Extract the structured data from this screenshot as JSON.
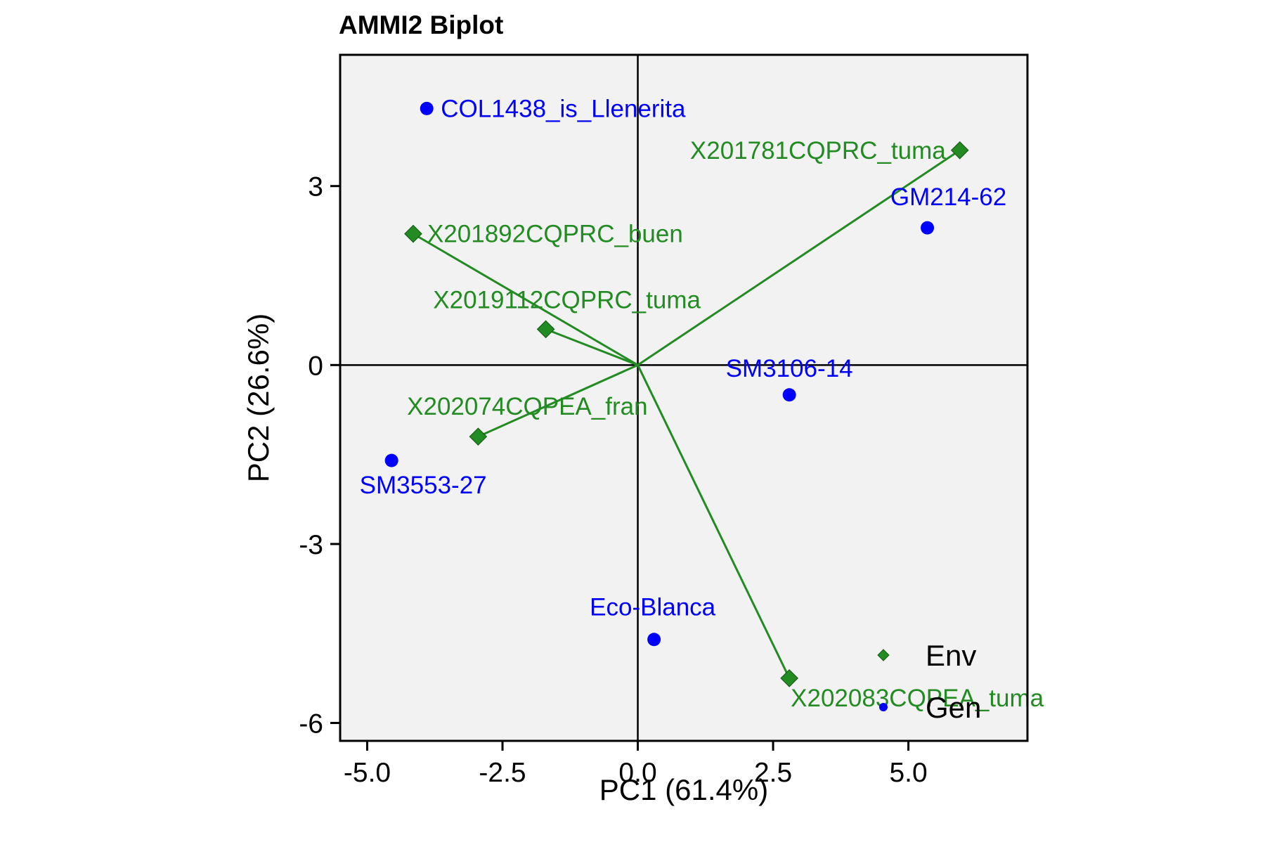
{
  "chart_data": {
    "type": "scatter",
    "title": "AMMI2 Biplot",
    "xlabel": "PC1 (61.4%)",
    "ylabel": "PC2 (26.6%)",
    "xlim": [
      -5.5,
      7.2
    ],
    "ylim": [
      -6.3,
      5.2
    ],
    "x_ticks": [
      -5.0,
      -2.5,
      0.0,
      2.5,
      5.0
    ],
    "x_tick_labels": [
      "-5.0",
      "-2.5",
      "0.0",
      "2.5",
      "5.0"
    ],
    "y_ticks": [
      -6,
      -3,
      0,
      3
    ],
    "y_tick_labels": [
      "-6",
      "-3",
      "0",
      "3"
    ],
    "grid": false,
    "legend_position": "bottom-right",
    "colors": {
      "Env": "#228B22",
      "Gen": "#0000FF",
      "panel": "#F2F2F2"
    },
    "series": [
      {
        "name": "Env",
        "marker": "diamond",
        "vectors_from_origin": true,
        "points": [
          {
            "label": "X201781CQPRC_tuma",
            "x": 5.95,
            "y": 3.6
          },
          {
            "label": "X201892CQPRC_buen",
            "x": -4.15,
            "y": 2.2
          },
          {
            "label": "X2019112CQPRC_tuma",
            "x": -1.7,
            "y": 0.6
          },
          {
            "label": "X202074CQPEA_fran",
            "x": -2.95,
            "y": -1.2
          },
          {
            "label": "X202083CQPEA_tuma",
            "x": 2.8,
            "y": -5.25
          }
        ]
      },
      {
        "name": "Gen",
        "marker": "circle",
        "vectors_from_origin": false,
        "points": [
          {
            "label": "COL1438_is_Llenerita",
            "x": -3.9,
            "y": 4.3
          },
          {
            "label": "GM214-62",
            "x": 5.35,
            "y": 2.3
          },
          {
            "label": "SM3106-14",
            "x": 2.8,
            "y": -0.5
          },
          {
            "label": "SM3553-27",
            "x": -4.55,
            "y": -1.6
          },
          {
            "label": "Eco-Blanca",
            "x": 0.3,
            "y": -4.6
          }
        ]
      }
    ]
  }
}
